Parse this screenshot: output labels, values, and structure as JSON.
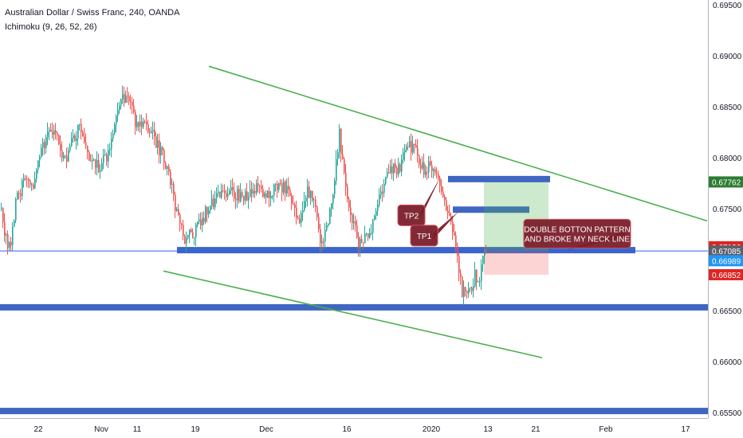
{
  "header": {
    "title": "Australian Dollar / Swiss Franc, 240, OANDA",
    "indicator": "Ichimoku (9, 26, 52, 26)"
  },
  "colors": {
    "bull": "#26a69a",
    "bear": "#ef5350",
    "trend": "#4caf50",
    "zone": "#1e4bb8",
    "support_line": "#2962ff",
    "target_box": "#4caf50",
    "stop_box": "#ef5350",
    "callout": "#7a1f2a",
    "badge_green": "#2e7d32",
    "badge_red": "#e02424",
    "badge_blue": "#2196f3",
    "badge_gray": "#5d606b"
  },
  "chart_data": {
    "type": "candlestick",
    "symbol": "Australian Dollar / Swiss Franc, 240, OANDA",
    "x_ticks": [
      "22",
      "Nov",
      "11",
      "19",
      "Dec",
      "16",
      "2020",
      "13",
      "21",
      "Feb",
      "17"
    ],
    "y_ticks": [
      "0.69500",
      "0.69000",
      "0.68500",
      "0.68000",
      "0.67500",
      "0.67000",
      "0.66500",
      "0.66000",
      "0.65500"
    ],
    "ylim": [
      0.6548,
      0.6953
    ],
    "price_path": [
      {
        "i": 0,
        "p": 0.675
      },
      {
        "i": 6,
        "p": 0.6725
      },
      {
        "i": 12,
        "p": 0.6712
      },
      {
        "i": 20,
        "p": 0.676
      },
      {
        "i": 30,
        "p": 0.6778
      },
      {
        "i": 40,
        "p": 0.6772
      },
      {
        "i": 50,
        "p": 0.68
      },
      {
        "i": 60,
        "p": 0.683
      },
      {
        "i": 70,
        "p": 0.6825
      },
      {
        "i": 80,
        "p": 0.6795
      },
      {
        "i": 90,
        "p": 0.6818
      },
      {
        "i": 100,
        "p": 0.683
      },
      {
        "i": 110,
        "p": 0.68
      },
      {
        "i": 125,
        "p": 0.679
      },
      {
        "i": 140,
        "p": 0.6815
      },
      {
        "i": 150,
        "p": 0.686
      },
      {
        "i": 160,
        "p": 0.686
      },
      {
        "i": 170,
        "p": 0.683
      },
      {
        "i": 180,
        "p": 0.6835
      },
      {
        "i": 192,
        "p": 0.682
      },
      {
        "i": 210,
        "p": 0.679
      },
      {
        "i": 220,
        "p": 0.675
      },
      {
        "i": 232,
        "p": 0.672
      },
      {
        "i": 245,
        "p": 0.673
      },
      {
        "i": 260,
        "p": 0.675
      },
      {
        "i": 275,
        "p": 0.6763
      },
      {
        "i": 290,
        "p": 0.6765
      },
      {
        "i": 305,
        "p": 0.676
      },
      {
        "i": 320,
        "p": 0.677
      },
      {
        "i": 335,
        "p": 0.6765
      },
      {
        "i": 350,
        "p": 0.6775
      },
      {
        "i": 365,
        "p": 0.676
      },
      {
        "i": 375,
        "p": 0.674
      },
      {
        "i": 385,
        "p": 0.677
      },
      {
        "i": 395,
        "p": 0.675
      },
      {
        "i": 402,
        "p": 0.671
      },
      {
        "i": 410,
        "p": 0.673
      },
      {
        "i": 418,
        "p": 0.677
      },
      {
        "i": 425,
        "p": 0.6822
      },
      {
        "i": 432,
        "p": 0.678
      },
      {
        "i": 440,
        "p": 0.674
      },
      {
        "i": 450,
        "p": 0.6715
      },
      {
        "i": 460,
        "p": 0.672
      },
      {
        "i": 470,
        "p": 0.6745
      },
      {
        "i": 480,
        "p": 0.677
      },
      {
        "i": 490,
        "p": 0.679
      },
      {
        "i": 500,
        "p": 0.679
      },
      {
        "i": 508,
        "p": 0.6805
      },
      {
        "i": 515,
        "p": 0.6812
      },
      {
        "i": 522,
        "p": 0.6802
      },
      {
        "i": 530,
        "p": 0.679
      },
      {
        "i": 540,
        "p": 0.679
      },
      {
        "i": 548,
        "p": 0.679
      },
      {
        "i": 556,
        "p": 0.676
      },
      {
        "i": 564,
        "p": 0.674
      },
      {
        "i": 572,
        "p": 0.671
      },
      {
        "i": 578,
        "p": 0.6672
      },
      {
        "i": 584,
        "p": 0.6662
      },
      {
        "i": 590,
        "p": 0.6668
      },
      {
        "i": 595,
        "p": 0.6685
      },
      {
        "i": 600,
        "p": 0.6675
      },
      {
        "i": 604,
        "p": 0.67
      },
      {
        "i": 609,
        "p": 0.6712
      }
    ],
    "horizontal_levels": [
      0.67085
    ],
    "support_zones": [
      {
        "from_i": 222,
        "to_i": 797,
        "price": 0.67093
      },
      {
        "from_i": 0,
        "to_i": 888,
        "price": 0.66532
      },
      {
        "from_i": 0,
        "to_i": 888,
        "price": 0.65515
      }
    ],
    "resistance_zones": [
      {
        "from_i": 562,
        "to_i": 690,
        "price": 0.6779
      },
      {
        "from_i": 568,
        "to_i": 664,
        "price": 0.6749
      }
    ],
    "trendlines": [
      {
        "from": {
          "i": 262,
          "p": 0.68897
        },
        "to": {
          "i": 887,
          "p": 0.6738
        }
      },
      {
        "from": {
          "i": 205,
          "p": 0.66888
        },
        "to": {
          "i": 680,
          "p": 0.66038
        }
      }
    ],
    "position": {
      "from_i": 607,
      "to_i": 688,
      "entry": 0.67085,
      "target": 0.67762,
      "stop": 0.66852
    },
    "annotations": [
      {
        "text": "TP2",
        "i": 516,
        "p": 0.67435,
        "style": "callout"
      },
      {
        "text": "TP1",
        "i": 532,
        "p": 0.67235,
        "style": "callout"
      },
      {
        "text": "DOUBLE BOTTON PATTERN\nAND BROKE MY NECK LINE",
        "i": 724,
        "p": 0.67255,
        "style": "callout"
      }
    ],
    "price_badges": [
      {
        "text": "0.67762",
        "p": 0.67762,
        "color": "green"
      },
      {
        "text": "0.67126",
        "p": 0.67126,
        "color": "red"
      },
      {
        "text": "0.67085",
        "p": 0.67085,
        "color": "gray"
      },
      {
        "text": "0.66989",
        "p": 0.66989,
        "color": "blue"
      },
      {
        "text": "0.66852",
        "p": 0.66852,
        "color": "red"
      }
    ]
  }
}
